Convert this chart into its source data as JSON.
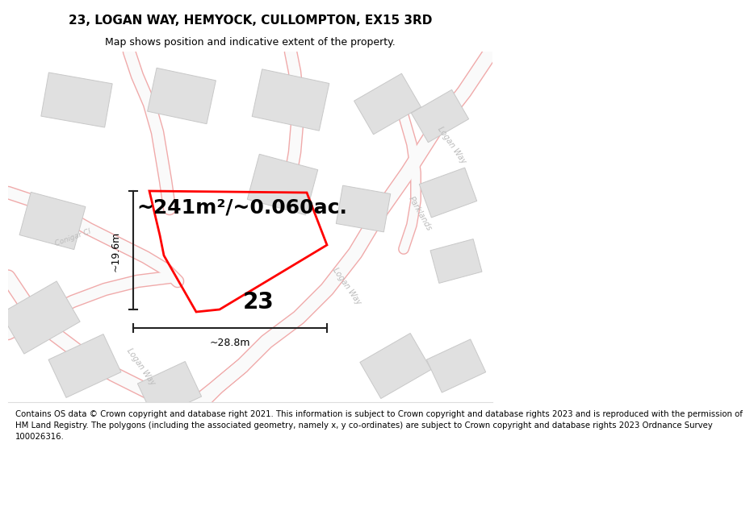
{
  "title": "23, LOGAN WAY, HEMYOCK, CULLOMPTON, EX15 3RD",
  "subtitle": "Map shows position and indicative extent of the property.",
  "area_text": "~241m²/~0.060ac.",
  "label_number": "23",
  "dim_height": "~19.6m",
  "dim_width": "~28.8m",
  "footer_lines": [
    "Contains OS data © Crown copyright and database right 2021. This information is subject to Crown copyright and database rights 2023 and is reproduced with the permission of",
    "HM Land Registry. The polygons (including the associated geometry, namely x, y co-ordinates) are subject to Crown copyright and database rights 2023 Ordnance Survey",
    "100026316."
  ],
  "map_bg": "#f7f7f7",
  "road_outline_color": "#f0aaaa",
  "road_fill_color": "#ffffff",
  "building_color": "#e0e0e0",
  "building_edge": "#c8c8c8",
  "plot_color": "#ff0000",
  "road_label_color": "#c0c0c0",
  "dim_line_color": "#222222",
  "title_fontsize": 11,
  "subtitle_fontsize": 9,
  "area_fontsize": 18,
  "label_fontsize": 20,
  "dim_fontsize": 9,
  "footer_fontsize": 7.5
}
